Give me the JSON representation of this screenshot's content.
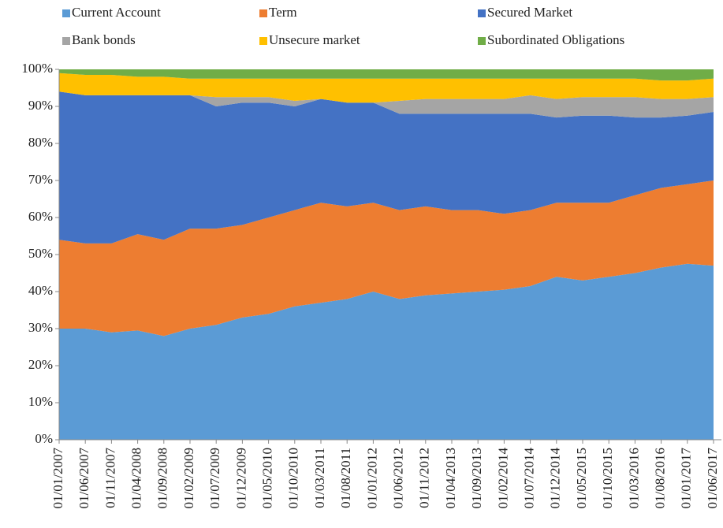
{
  "chart_data": {
    "type": "stacked-area",
    "categories": [
      "01/01/2007",
      "01/06/2007",
      "01/11/2007",
      "01/04/2008",
      "01/09/2008",
      "01/02/2009",
      "01/07/2009",
      "01/12/2009",
      "01/05/2010",
      "01/10/2010",
      "01/03/2011",
      "01/08/2011",
      "01/01/2012",
      "01/06/2012",
      "01/11/2012",
      "01/04/2013",
      "01/09/2013",
      "01/02/2014",
      "01/07/2014",
      "01/12/2014",
      "01/05/2015",
      "01/10/2015",
      "01/03/2016",
      "01/08/2016",
      "01/01/2017",
      "01/06/2017"
    ],
    "series": [
      {
        "name": "Current Account",
        "color": "#5b9bd5",
        "values": [
          30,
          30,
          29,
          29.5,
          28,
          30,
          31,
          33,
          34,
          36,
          37,
          38,
          40,
          38,
          39,
          39.5,
          40,
          40.5,
          41.5,
          44,
          43,
          44,
          45,
          46.5,
          47.5,
          47
        ]
      },
      {
        "name": "Term",
        "color": "#ed7d31",
        "values": [
          24,
          23,
          24,
          26,
          26,
          27,
          26,
          25,
          26,
          26,
          27,
          25,
          24,
          24,
          24,
          22.5,
          22,
          20.5,
          20.5,
          20,
          21,
          20,
          21,
          21.5,
          21.5,
          23
        ]
      },
      {
        "name": "Secured Market",
        "color": "#4472c4",
        "values": [
          40,
          40,
          40,
          37.5,
          39,
          36,
          33,
          33,
          31,
          28,
          28,
          28,
          27,
          26,
          25,
          26,
          26,
          27,
          26,
          23,
          23.5,
          23.5,
          21,
          19,
          18.5,
          18.5
        ]
      },
      {
        "name": "Bank bonds",
        "color": "#a5a5a5",
        "values": [
          0,
          0,
          0,
          0,
          0,
          0,
          2.5,
          1.5,
          1.5,
          1.5,
          0,
          0,
          0,
          3.5,
          4,
          4,
          4,
          4,
          5,
          5,
          5,
          5,
          5.5,
          5,
          4.5,
          4
        ]
      },
      {
        "name": "Unsecure market",
        "color": "#ffc000",
        "values": [
          5,
          5.5,
          5.5,
          5,
          5,
          4.5,
          5,
          5,
          5,
          6,
          5.5,
          6.5,
          6.5,
          6,
          5.5,
          5.5,
          5.5,
          5.5,
          4.5,
          5.5,
          5,
          5,
          5,
          5,
          5,
          5
        ]
      },
      {
        "name": "Subordinated Obligations",
        "color": "#70ad47",
        "values": [
          1,
          1.5,
          1.5,
          2,
          2,
          2.5,
          2.5,
          2.5,
          2.5,
          2.5,
          2.5,
          2.5,
          2.5,
          2.5,
          2.5,
          2.5,
          2.5,
          2.5,
          2.5,
          2.5,
          2.5,
          2.5,
          2.5,
          3,
          3,
          2.5
        ]
      }
    ],
    "ylim": [
      0,
      100
    ],
    "yticks": [
      {
        "value": 0,
        "label": "0%"
      },
      {
        "value": 10,
        "label": "10%"
      },
      {
        "value": 20,
        "label": "20%"
      },
      {
        "value": 30,
        "label": "30%"
      },
      {
        "value": 40,
        "label": "40%"
      },
      {
        "value": 50,
        "label": "50%"
      },
      {
        "value": 60,
        "label": "60%"
      },
      {
        "value": 70,
        "label": "70%"
      },
      {
        "value": 80,
        "label": "80%"
      },
      {
        "value": 90,
        "label": "90%"
      },
      {
        "value": 100,
        "label": "100%"
      }
    ],
    "legend": "top"
  }
}
